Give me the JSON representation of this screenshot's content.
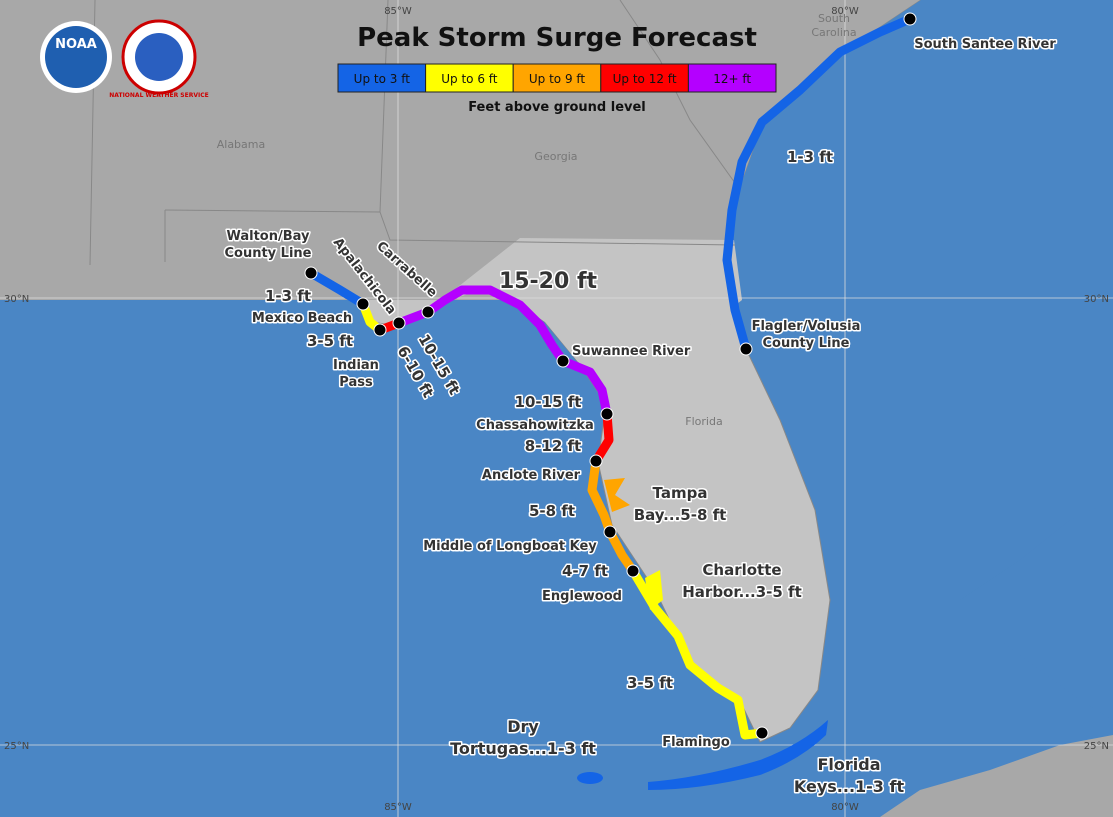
{
  "logos": {
    "noaa": "NOAA",
    "nws": "NATIONAL WEATHER SERVICE"
  },
  "title": "Peak Storm Surge Forecast",
  "legend": {
    "items": [
      {
        "label": "Up to 3 ft",
        "color": "#1464e6"
      },
      {
        "label": "Up to 6 ft",
        "color": "#ffff00"
      },
      {
        "label": "Up to 9 ft",
        "color": "#ffa500"
      },
      {
        "label": "Up to 12 ft",
        "color": "#ff0000"
      },
      {
        "label": "12+ ft",
        "color": "#b400ff"
      }
    ],
    "caption": "Feet above ground level"
  },
  "grid": {
    "lon": [
      "85°W",
      "80°W"
    ],
    "lat": [
      "30°N",
      "25°N"
    ]
  },
  "states": [
    [
      "Alabama"
    ],
    [
      "Georgia"
    ],
    [
      "Florida"
    ],
    [
      "South",
      "Carolina"
    ]
  ],
  "labels": [
    {
      "lines": [
        "Walton/Bay",
        "County Line"
      ]
    },
    {
      "lines": [
        "1-3 ft"
      ]
    },
    {
      "lines": [
        "Mexico Beach"
      ]
    },
    {
      "lines": [
        "3-5 ft"
      ]
    },
    {
      "lines": [
        "Indian",
        "Pass"
      ]
    },
    {
      "lines": [
        "6-10 ft"
      ]
    },
    {
      "lines": [
        "Apalachicola"
      ]
    },
    {
      "lines": [
        "Carrabelle"
      ]
    },
    {
      "lines": [
        "10-15 ft"
      ]
    },
    {
      "lines": [
        "15-20 ft"
      ]
    },
    {
      "lines": [
        "Suwannee River"
      ]
    },
    {
      "lines": [
        "10-15 ft"
      ]
    },
    {
      "lines": [
        "Chassahowitzka"
      ]
    },
    {
      "lines": [
        "8-12 ft"
      ]
    },
    {
      "lines": [
        "Anclote River"
      ]
    },
    {
      "lines": [
        "5-8 ft"
      ]
    },
    {
      "lines": [
        "Tampa",
        "Bay...5-8 ft"
      ]
    },
    {
      "lines": [
        "Middle of Longboat Key"
      ]
    },
    {
      "lines": [
        "4-7 ft"
      ]
    },
    {
      "lines": [
        "Englewood"
      ]
    },
    {
      "lines": [
        "Charlotte",
        "Harbor...3-5 ft"
      ]
    },
    {
      "lines": [
        "3-5 ft"
      ]
    },
    {
      "lines": [
        "Dry",
        "Tortugas...1-3 ft"
      ]
    },
    {
      "lines": [
        "Flamingo"
      ]
    },
    {
      "lines": [
        "Florida",
        "Keys...1-3 ft"
      ]
    },
    {
      "lines": [
        "South Santee River"
      ]
    },
    {
      "lines": [
        "1-3 ft"
      ]
    },
    {
      "lines": [
        "Flagler/Volusia",
        "County Line"
      ]
    }
  ]
}
